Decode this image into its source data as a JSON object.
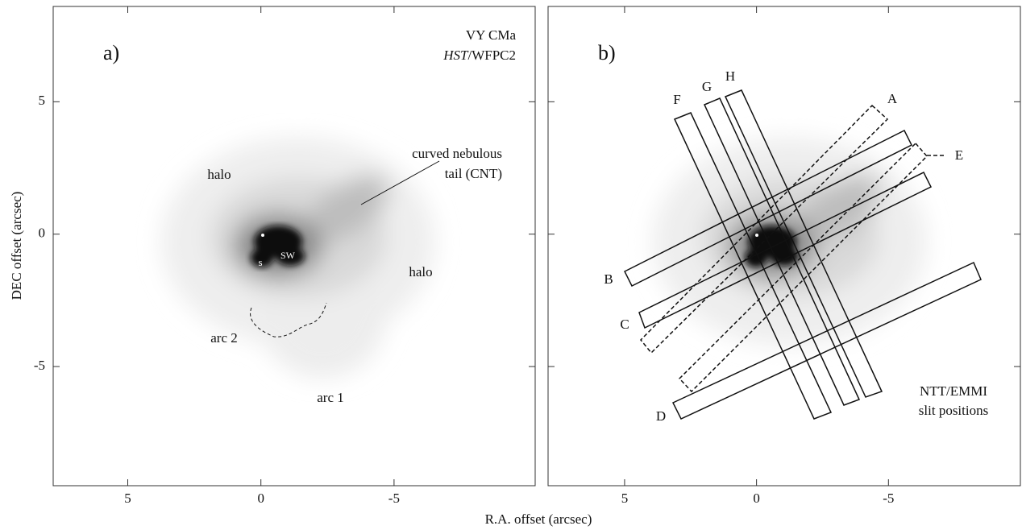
{
  "chart_data": [
    {
      "type": "image",
      "label": "a)",
      "xlim": [
        7.8,
        -10.3
      ],
      "ylim": [
        -9.5,
        8.6
      ],
      "xticks": [
        5,
        0,
        -5
      ],
      "yticks": [
        5,
        0,
        -5
      ],
      "xlabel": "R.A. offset (arcsec)",
      "ylabel": "DEC offset (arcsec)",
      "title_lines": [
        "VY CMa",
        "HST",
        "/WFPC2"
      ],
      "annotations": [
        "curved nebulous",
        "tail (CNT)",
        "halo",
        "halo",
        "arc 2",
        "arc 1",
        "s",
        "SW"
      ]
    },
    {
      "type": "image",
      "label": "b)",
      "xlim": [
        7.9,
        -10.0
      ],
      "ylim": [
        -9.5,
        8.6
      ],
      "xticks": [
        5,
        0,
        -5
      ],
      "yticks": [
        5,
        0,
        -5
      ],
      "slits": [
        "A",
        "B",
        "C",
        "D",
        "E",
        "F",
        "G",
        "H"
      ],
      "annotations": [
        "NTT/EMMI",
        "slit positions"
      ]
    }
  ]
}
